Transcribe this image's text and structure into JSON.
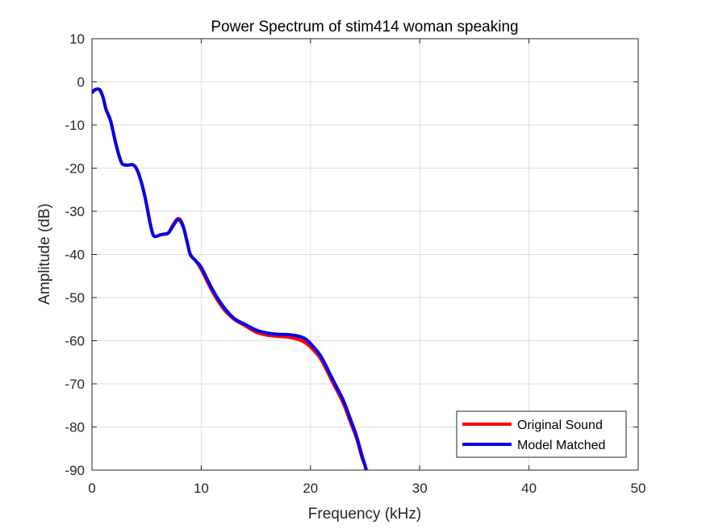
{
  "chart_data": {
    "type": "line",
    "title": "Power Spectrum of stim414 woman speaking",
    "xlabel": "Frequency (kHz)",
    "ylabel": "Amplitude (dB)",
    "xlim": [
      0,
      50
    ],
    "ylim": [
      -90,
      10
    ],
    "xticks": [
      0,
      10,
      20,
      30,
      40,
      50
    ],
    "yticks": [
      10,
      0,
      -10,
      -20,
      -30,
      -40,
      -50,
      -60,
      -70,
      -80,
      -90
    ],
    "xtick_labels": [
      "0",
      "10",
      "20",
      "30",
      "40",
      "50"
    ],
    "ytick_labels": [
      "10",
      "0",
      "-10",
      "-20",
      "-30",
      "-40",
      "-50",
      "-60",
      "-70",
      "-80",
      "-90"
    ],
    "grid": true,
    "legend_position": "bottom-right",
    "series": [
      {
        "name": "Original Sound",
        "color": "#ff0000",
        "x": [
          0,
          0.3,
          0.7,
          1.0,
          1.3,
          1.7,
          2.2,
          2.7,
          3.2,
          3.7,
          4.0,
          4.3,
          4.7,
          5.0,
          5.3,
          5.6,
          5.9,
          6.2,
          6.6,
          7.0,
          7.4,
          7.8,
          8.1,
          8.4,
          8.7,
          9.0,
          9.5,
          10.0,
          11.0,
          12.0,
          13.0,
          14.0,
          15.0,
          16.0,
          17.0,
          18.0,
          19.0,
          19.6,
          20.2,
          21.0,
          22.0,
          23.0,
          23.6,
          24.2,
          24.7,
          25.0,
          25.2
        ],
        "values": [
          -2.5,
          -1.8,
          -1.8,
          -3.5,
          -6.5,
          -9.0,
          -14.5,
          -18.7,
          -19.3,
          -19.2,
          -19.8,
          -21.5,
          -25.0,
          -28.5,
          -32.5,
          -35.5,
          -35.8,
          -35.5,
          -35.3,
          -35.0,
          -33.2,
          -31.8,
          -32.0,
          -33.8,
          -37.0,
          -40.0,
          -41.5,
          -43.5,
          -48.5,
          -52.5,
          -55.0,
          -56.5,
          -58.0,
          -58.7,
          -59.0,
          -59.2,
          -59.8,
          -60.6,
          -62.0,
          -64.5,
          -69.5,
          -74.5,
          -78.5,
          -82.5,
          -87.0,
          -89.0,
          -91.0
        ]
      },
      {
        "name": "Model Matched",
        "color": "#0000ee",
        "x": [
          0,
          0.3,
          0.7,
          1.0,
          1.3,
          1.7,
          2.2,
          2.7,
          3.2,
          3.7,
          4.0,
          4.3,
          4.7,
          5.0,
          5.3,
          5.6,
          5.9,
          6.2,
          6.6,
          7.0,
          7.4,
          7.8,
          8.1,
          8.4,
          8.7,
          9.0,
          9.5,
          10.0,
          11.0,
          12.0,
          13.0,
          14.0,
          15.0,
          16.0,
          17.0,
          18.0,
          19.0,
          19.6,
          20.2,
          21.0,
          22.0,
          23.0,
          23.6,
          24.2,
          24.7,
          25.0,
          25.2
        ],
        "values": [
          -2.5,
          -1.8,
          -1.8,
          -3.5,
          -6.5,
          -9.0,
          -14.5,
          -18.7,
          -19.3,
          -19.2,
          -19.8,
          -21.5,
          -25.0,
          -28.5,
          -32.5,
          -35.5,
          -35.8,
          -35.5,
          -35.3,
          -35.0,
          -33.5,
          -32.0,
          -32.3,
          -34.0,
          -37.0,
          -40.0,
          -41.5,
          -43.0,
          -48.0,
          -52.0,
          -54.8,
          -56.2,
          -57.5,
          -58.2,
          -58.5,
          -58.6,
          -59.0,
          -59.7,
          -61.2,
          -63.8,
          -68.8,
          -73.8,
          -77.8,
          -82.0,
          -86.5,
          -89.0,
          -91.0
        ]
      }
    ]
  }
}
